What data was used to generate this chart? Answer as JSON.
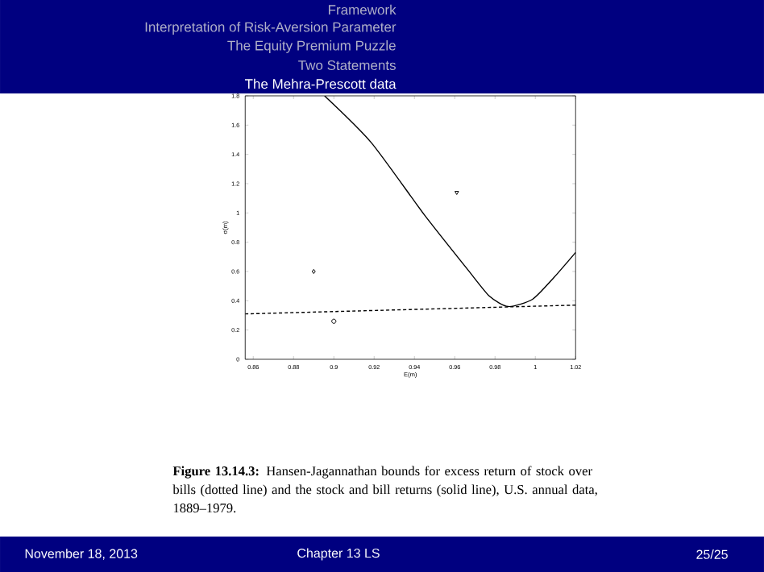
{
  "chart_data": {
    "type": "line",
    "xlabel": "E(m)",
    "ylabel": "σ(m)",
    "xlim": [
      0.856,
      1.02
    ],
    "ylim": [
      0,
      1.8
    ],
    "xticks": [
      0.86,
      0.88,
      0.9,
      0.92,
      0.94,
      0.96,
      0.98,
      1,
      1.02
    ],
    "yticks": [
      0,
      0.2,
      0.4,
      0.6,
      0.8,
      1,
      1.2,
      1.4,
      1.6,
      1.8
    ],
    "grid": false,
    "series": [
      {
        "type": "line",
        "line_style": "solid",
        "marker": "none",
        "color": "#000000",
        "x": [
          0.8954,
          0.9186,
          0.9453,
          0.9666,
          0.9773,
          0.9866,
          0.9986,
          1.0093,
          1.02
        ],
        "values": [
          1.8,
          1.48,
          0.98,
          0.61,
          0.43,
          0.36,
          0.41,
          0.56,
          0.73
        ]
      },
      {
        "type": "line",
        "line_style": "dashed",
        "marker": "none",
        "color": "#000000",
        "x": [
          0.856,
          1.02
        ],
        "values": [
          0.31,
          0.37
        ]
      },
      {
        "type": "scatter",
        "marker": "diamond",
        "color": "#000000",
        "x": [
          0.89
        ],
        "values": [
          0.6
        ]
      },
      {
        "type": "scatter",
        "marker": "circle",
        "color": "#000000",
        "x": [
          0.9
        ],
        "values": [
          0.26
        ]
      },
      {
        "type": "scatter",
        "marker": "triangle",
        "color": "#000000",
        "x": [
          0.961
        ],
        "values": [
          1.14
        ]
      }
    ],
    "annotations": [
      "Framework",
      "Interpretation of Risk-Aversion Parameter",
      "The Equity Premium Puzzle",
      "Two Statements",
      "The Mehra-Prescott data",
      "**Figure 13.14.3:** Hansen-Jagannathan bounds for excess return of stock over bills (dotted line) and the stock and bill returns (solid line), U.S. annual data, 1889–1979.",
      "November 18, 2013",
      "Chapter 13  LS",
      "25/25"
    ]
  }
}
